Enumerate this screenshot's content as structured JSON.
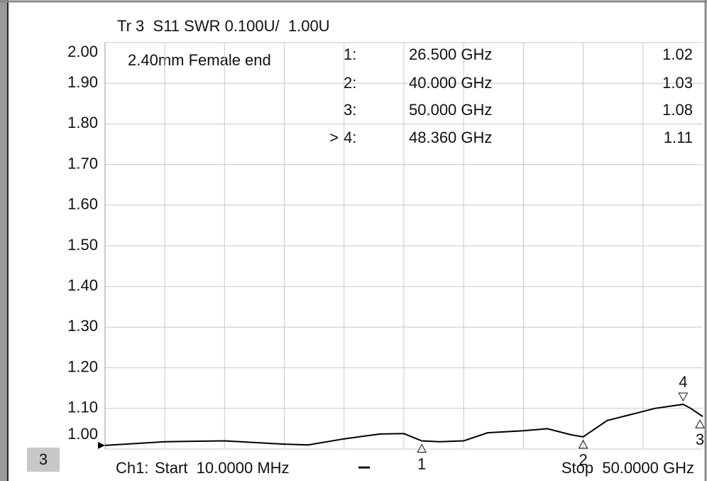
{
  "chart_data": {
    "type": "line",
    "title": "Tr 3  S11 SWR 0.100U/  1.00U",
    "annotation": "2.40mm Female end",
    "channel_box": "3",
    "channel": "Ch1:",
    "start_text": "Start  10.0000 MHz",
    "stop_text": "Stop  50.0000 GHz",
    "xlim": [
      0.01,
      50
    ],
    "ylim": [
      1,
      2
    ],
    "xticks": [
      5,
      10,
      15,
      20,
      25,
      30,
      35,
      40,
      45
    ],
    "yticks": [
      {
        "value": 1,
        "label": "1.00"
      },
      {
        "value": 1.1,
        "label": "1.10"
      },
      {
        "value": 1.2,
        "label": "1.20"
      },
      {
        "value": 1.3,
        "label": "1.30"
      },
      {
        "value": 1.4,
        "label": "1.40"
      },
      {
        "value": 1.5,
        "label": "1.50"
      },
      {
        "value": 1.6,
        "label": "1.60"
      },
      {
        "value": 1.7,
        "label": "1.70"
      },
      {
        "value": 1.8,
        "label": "1.80"
      },
      {
        "value": 1.9,
        "label": "1.90"
      },
      {
        "value": 2,
        "label": "2.00"
      }
    ],
    "grid": true,
    "series": [
      {
        "name": "S11",
        "color": "#000000",
        "x": [
          0.01,
          5,
          10,
          15,
          17,
          20,
          23,
          25,
          26.5,
          28,
          30,
          32,
          35,
          37,
          39,
          40,
          42,
          44,
          46,
          48.36,
          49,
          50
        ],
        "values": [
          1.009,
          1.018,
          1.02,
          1.012,
          1.01,
          1.025,
          1.037,
          1.038,
          1.02,
          1.018,
          1.02,
          1.04,
          1.045,
          1.05,
          1.035,
          1.03,
          1.07,
          1.085,
          1.1,
          1.11,
          1.1,
          1.08
        ]
      }
    ],
    "active_symbol": ">",
    "markers": [
      {
        "label": "1",
        "number": "1:",
        "x": {
          "value": 26.5,
          "label": "26.500 GHz"
        },
        "value": 1.02,
        "active": false
      },
      {
        "label": "2",
        "number": "2:",
        "x": {
          "value": 40,
          "label": "40.000 GHz"
        },
        "value": 1.03,
        "active": false
      },
      {
        "label": "3",
        "number": "3:",
        "x": {
          "value": 50,
          "label": "50.000 GHz"
        },
        "value": 1.08,
        "active": false
      },
      {
        "label": "4",
        "number": "4:",
        "x": {
          "value": 48.36,
          "label": "48.360 GHz"
        },
        "value": 1.11,
        "active": true
      }
    ]
  }
}
